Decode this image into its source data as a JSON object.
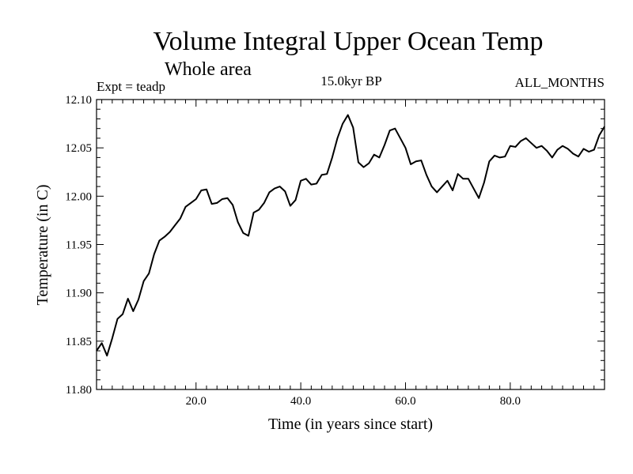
{
  "chart_data": {
    "type": "line",
    "title": "Volume Integral Upper Ocean Temp",
    "subtitle": "Whole area",
    "expt_label": "Expt = teadp",
    "period_label": "15.0kyr BP",
    "months_label": "ALL_MONTHS",
    "xlabel": "Time (in years since start)",
    "ylabel": "Temperature (in C)",
    "xlim": [
      1,
      98
    ],
    "ylim": [
      11.8,
      12.1
    ],
    "xticks": [
      20,
      40,
      60,
      80
    ],
    "xtick_labels": [
      "20.0",
      "40.0",
      "60.0",
      "80.0"
    ],
    "yticks": [
      11.8,
      11.85,
      11.9,
      11.95,
      12.0,
      12.05,
      12.1
    ],
    "ytick_labels": [
      "11.80",
      "11.85",
      "11.90",
      "11.95",
      "12.00",
      "12.05",
      "12.10"
    ],
    "line_color": "#000000",
    "series": [
      {
        "name": "Temperature",
        "x": [
          1,
          2,
          3,
          4,
          5,
          6,
          7,
          8,
          9,
          10,
          11,
          12,
          13,
          14,
          15,
          16,
          17,
          18,
          19,
          20,
          21,
          22,
          23,
          24,
          25,
          26,
          27,
          28,
          29,
          30,
          31,
          32,
          33,
          34,
          35,
          36,
          37,
          38,
          39,
          40,
          41,
          42,
          43,
          44,
          45,
          46,
          47,
          48,
          49,
          50,
          51,
          52,
          53,
          54,
          55,
          56,
          57,
          58,
          59,
          60,
          61,
          62,
          63,
          64,
          65,
          66,
          67,
          68,
          69,
          70,
          71,
          72,
          73,
          74,
          75,
          76,
          77,
          78,
          79,
          80,
          81,
          82,
          83,
          84,
          85,
          86,
          87,
          88,
          89,
          90,
          91,
          92,
          93,
          94,
          95,
          96,
          97,
          98
        ],
        "values": [
          11.84,
          11.848,
          11.835,
          11.853,
          11.873,
          11.878,
          11.894,
          11.881,
          11.893,
          11.912,
          11.92,
          11.94,
          11.954,
          11.958,
          11.963,
          11.97,
          11.977,
          11.989,
          11.993,
          11.997,
          12.006,
          12.007,
          11.992,
          11.993,
          11.997,
          11.998,
          11.991,
          11.973,
          11.962,
          11.959,
          11.983,
          11.986,
          11.993,
          12.004,
          12.008,
          12.01,
          12.005,
          11.99,
          11.996,
          12.016,
          12.018,
          12.012,
          12.013,
          12.022,
          12.023,
          12.04,
          12.06,
          12.075,
          12.084,
          12.071,
          12.035,
          12.03,
          12.034,
          12.043,
          12.04,
          12.053,
          12.068,
          12.07,
          12.06,
          12.05,
          12.033,
          12.036,
          12.037,
          12.022,
          12.01,
          12.004,
          12.01,
          12.016,
          12.006,
          12.023,
          12.018,
          12.018,
          12.008,
          11.998,
          12.014,
          12.036,
          12.042,
          12.04,
          12.041,
          12.052,
          12.051,
          12.057,
          12.06,
          12.055,
          12.05,
          12.052,
          12.047,
          12.04,
          12.048,
          12.052,
          12.049,
          12.044,
          12.041,
          12.049,
          12.046,
          12.048,
          12.063,
          12.072
        ]
      }
    ]
  }
}
